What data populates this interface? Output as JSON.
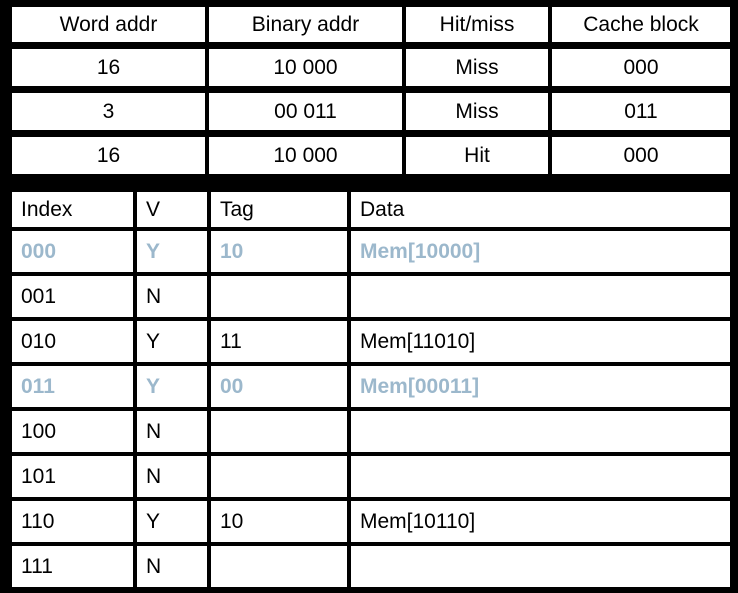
{
  "colors": {
    "background": "#000000",
    "cell_background": "#ffffff",
    "text": "#000000",
    "highlight_text": "#9cb8cc"
  },
  "reference_table": {
    "headers": [
      "Word addr",
      "Binary addr",
      "Hit/miss",
      "Cache block"
    ],
    "rows": [
      [
        "16",
        "10 000",
        "Miss",
        "000"
      ],
      [
        "3",
        "00 011",
        "Miss",
        "011"
      ],
      [
        "16",
        "10 000",
        "Hit",
        "000"
      ]
    ]
  },
  "cache_table": {
    "headers": [
      "Index",
      "V",
      "Tag",
      "Data"
    ],
    "rows": [
      {
        "index": "000",
        "v": "Y",
        "tag": "10",
        "data": "Mem[10000]",
        "highlighted": true
      },
      {
        "index": "001",
        "v": "N",
        "tag": "",
        "data": "",
        "highlighted": false
      },
      {
        "index": "010",
        "v": "Y",
        "tag": "11",
        "data": "Mem[11010]",
        "highlighted": false
      },
      {
        "index": "011",
        "v": "Y",
        "tag": "00",
        "data": "Mem[00011]",
        "highlighted": true
      },
      {
        "index": "100",
        "v": "N",
        "tag": "",
        "data": "",
        "highlighted": false
      },
      {
        "index": "101",
        "v": "N",
        "tag": "",
        "data": "",
        "highlighted": false
      },
      {
        "index": "110",
        "v": "Y",
        "tag": "10",
        "data": "Mem[10110]",
        "highlighted": false
      },
      {
        "index": "111",
        "v": "N",
        "tag": "",
        "data": "",
        "highlighted": false
      }
    ]
  }
}
